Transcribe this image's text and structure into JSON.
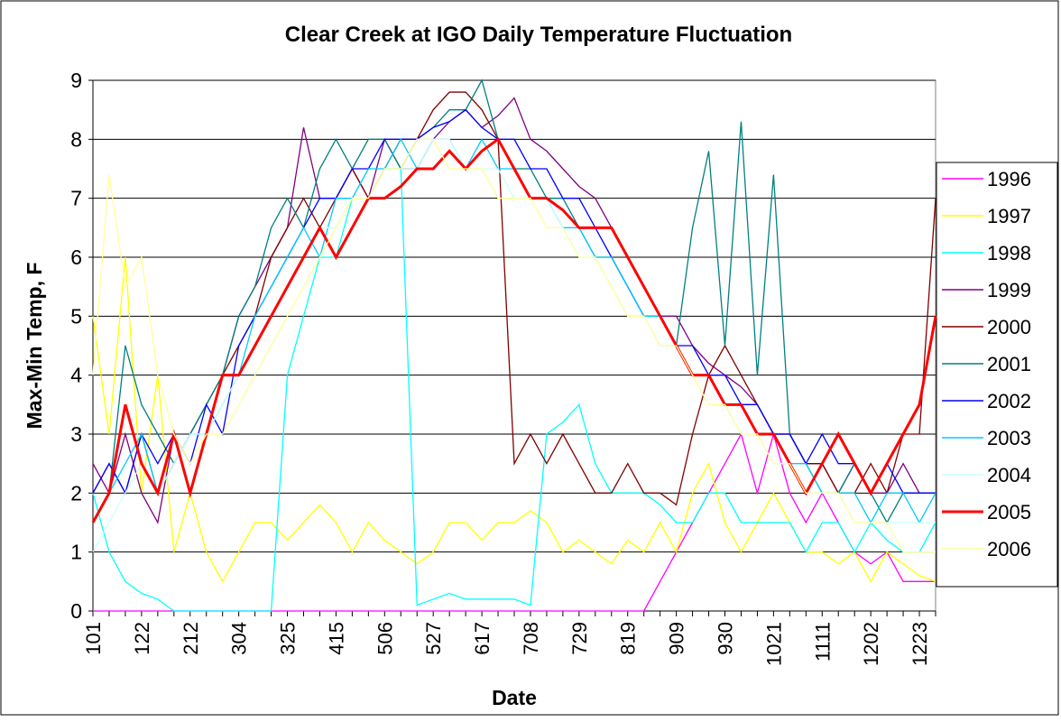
{
  "chart_data": {
    "type": "line",
    "title": "Clear Creek at IGO Daily Temperature Fluctuation",
    "xlabel": "Date",
    "ylabel": "Max-Min Temp, F",
    "categories": [
      "101",
      null,
      null,
      "122",
      null,
      null,
      "212",
      null,
      null,
      "304",
      null,
      null,
      "325",
      null,
      null,
      "415",
      null,
      null,
      "506",
      null,
      null,
      "527",
      null,
      null,
      "617",
      null,
      null,
      "708",
      null,
      null,
      "729",
      null,
      null,
      "819",
      null,
      null,
      "909",
      null,
      null,
      "930",
      null,
      null,
      "1021",
      null,
      null,
      "1111",
      null,
      null,
      "1202",
      null,
      null,
      "1223",
      null
    ],
    "ylim": [
      0,
      9
    ],
    "yticks": [
      0,
      1,
      2,
      3,
      4,
      5,
      6,
      7,
      8,
      9
    ],
    "grid": true,
    "legend": "right",
    "series": [
      {
        "name": "1996",
        "color": "#FF00FF",
        "values": [
          0,
          0,
          0,
          0,
          0,
          0,
          0,
          0,
          0,
          0,
          0,
          0,
          0,
          0,
          0,
          0,
          0,
          0,
          0,
          0,
          0,
          0,
          0,
          0,
          0,
          0,
          0,
          0,
          0,
          0,
          0,
          0,
          0,
          0,
          0,
          0.5,
          1,
          1.5,
          2,
          2.5,
          3,
          2,
          3,
          2,
          1.5,
          2,
          1.5,
          1,
          0.8,
          1,
          0.5,
          0.5,
          0.5
        ]
      },
      {
        "name": "1997",
        "color": "#FFFF00",
        "values": [
          5,
          3,
          6,
          2,
          4,
          1,
          2,
          1,
          0.5,
          1,
          1.5,
          1.5,
          1.2,
          1.5,
          1.8,
          1.5,
          1,
          1.5,
          1.2,
          1,
          0.8,
          1,
          1.5,
          1.5,
          1.2,
          1.5,
          1.5,
          1.7,
          1.5,
          1,
          1.2,
          1,
          0.8,
          1.2,
          1,
          1.5,
          1,
          2,
          2.5,
          1.5,
          1,
          1.5,
          2,
          1.5,
          1,
          1,
          0.8,
          1,
          0.5,
          1,
          0.8,
          0.6,
          0.5
        ]
      },
      {
        "name": "1998",
        "color": "#00FFFF",
        "values": [
          2,
          1,
          0.5,
          0.3,
          0.2,
          0,
          0,
          0,
          0,
          0,
          0,
          0,
          4,
          5,
          6,
          6,
          7,
          7,
          7.5,
          7.5,
          0.1,
          0.2,
          0.3,
          0.2,
          0.2,
          0.2,
          0.2,
          0.1,
          3,
          3.2,
          3.5,
          2.5,
          2,
          2,
          2,
          1.8,
          1.5,
          1.5,
          2,
          2,
          1.5,
          1.5,
          1.5,
          1.5,
          1,
          1.5,
          1.5,
          1,
          1.5,
          1.2,
          1,
          1,
          1.5
        ]
      },
      {
        "name": "1999",
        "color": "#800080",
        "values": [
          2.5,
          2,
          3,
          2,
          1.5,
          3,
          2,
          3,
          4,
          5,
          5.5,
          6,
          6.5,
          8.2,
          7,
          7,
          7.5,
          7,
          8,
          7.5,
          7.5,
          8,
          8.3,
          8.5,
          8.2,
          8.4,
          8.7,
          8,
          7.8,
          7.5,
          7.2,
          7,
          6.5,
          6,
          5.5,
          5,
          5,
          4.5,
          4.2,
          4,
          3.8,
          3.5,
          3,
          3,
          2.5,
          2.5,
          2,
          2.5,
          2,
          2,
          2.5,
          2,
          2
        ]
      },
      {
        "name": "2000",
        "color": "#800000",
        "values": [
          2,
          2.5,
          2,
          3,
          2,
          2.5,
          3,
          3.5,
          4,
          4.5,
          5,
          6,
          6.5,
          7,
          6.5,
          7,
          7.5,
          7,
          7.5,
          8,
          8,
          8.5,
          8.8,
          8.8,
          8.5,
          8,
          2.5,
          3,
          2.5,
          3,
          2.5,
          2,
          2,
          2.5,
          2,
          2,
          1.8,
          3,
          4,
          4.5,
          4,
          3.5,
          3,
          3,
          2.5,
          2.5,
          2,
          2,
          2.5,
          2,
          3,
          3,
          7
        ]
      },
      {
        "name": "2001",
        "color": "#008080",
        "values": [
          1.5,
          2,
          4.5,
          3.5,
          3,
          2.5,
          3,
          3.5,
          4,
          5,
          5.5,
          6.5,
          7,
          6.5,
          7.5,
          8,
          7.5,
          8,
          8,
          7.5,
          8,
          8.2,
          8.5,
          8.5,
          9,
          8,
          7.5,
          7.5,
          7,
          7,
          6.5,
          6,
          6,
          5.5,
          5,
          5,
          4.5,
          6.5,
          7.8,
          4.5,
          8.3,
          4,
          7.4,
          3,
          2.5,
          2,
          2,
          2.5,
          2,
          1.5,
          2,
          2,
          2
        ]
      },
      {
        "name": "2002",
        "color": "#0000FF",
        "values": [
          2,
          2.5,
          2,
          3,
          2.5,
          3,
          2.5,
          3.5,
          3,
          4.5,
          5,
          5.5,
          6,
          6.5,
          7,
          7,
          7.5,
          7.5,
          8,
          8,
          8,
          8.2,
          8.3,
          8.5,
          8.2,
          8,
          8,
          7.5,
          7.5,
          7,
          7,
          6.5,
          6,
          5.5,
          5,
          5,
          4.5,
          4.5,
          4,
          4,
          3.5,
          3.5,
          3,
          3,
          2.5,
          3,
          2.5,
          2.5,
          2,
          2.5,
          2,
          2,
          2
        ]
      },
      {
        "name": "2003",
        "color": "#00CCFF",
        "values": [
          1.5,
          2,
          2.5,
          3,
          2,
          2.5,
          3,
          3,
          3.5,
          4,
          5,
          5.5,
          6,
          6.5,
          6,
          7,
          7,
          7.5,
          7.5,
          8,
          7.5,
          8,
          8,
          7.5,
          8,
          7.5,
          7.5,
          7,
          7,
          6.5,
          6.5,
          6,
          6,
          5.5,
          5,
          5,
          4.5,
          4,
          4,
          3.5,
          3.5,
          3,
          3,
          2.5,
          2.5,
          2,
          2,
          2,
          1.5,
          2,
          2,
          1.5,
          2
        ]
      },
      {
        "name": "2004",
        "color": "#CCFFFF",
        "values": [
          1,
          1.5,
          2,
          2.5,
          2,
          2.5,
          3,
          3,
          3.5,
          4,
          4.5,
          5,
          5.5,
          6,
          6.5,
          6.5,
          7,
          7,
          7.5,
          7.5,
          7.5,
          8,
          8,
          7.5,
          7.5,
          7.5,
          7,
          7,
          7,
          6.5,
          6,
          6,
          5.5,
          5,
          5,
          4.5,
          4.5,
          4,
          4,
          3.5,
          3,
          3,
          2.5,
          2.5,
          2,
          2,
          2,
          1.5,
          1.5,
          1.5,
          1.5,
          1.5,
          1.5
        ]
      },
      {
        "name": "2005",
        "color": "#FF0000",
        "values": [
          1.5,
          2,
          3.5,
          2.5,
          2,
          3,
          2,
          3,
          4,
          4,
          4.5,
          5,
          5.5,
          6,
          6.5,
          6,
          6.5,
          7,
          7,
          7.2,
          7.5,
          7.5,
          7.8,
          7.5,
          7.8,
          8,
          7.5,
          7,
          7,
          6.8,
          6.5,
          6.5,
          6.5,
          6,
          5.5,
          5,
          4.5,
          4,
          4,
          3.5,
          3.5,
          3,
          3,
          2.5,
          2,
          2.5,
          3,
          2.5,
          2,
          2.5,
          3,
          3.5,
          5
        ]
      },
      {
        "name": "2006",
        "color": "#FFFF99",
        "values": [
          4,
          7.4,
          5.5,
          6,
          4,
          3,
          2.5,
          3,
          3,
          3.5,
          4,
          4.5,
          5,
          5.5,
          6,
          6.5,
          7,
          7,
          7.5,
          7.5,
          8,
          8,
          7.5,
          7.5,
          7.5,
          7,
          7,
          7,
          6.5,
          6.5,
          6,
          6,
          5.5,
          5,
          5,
          4.5,
          4.5,
          4,
          3.5,
          3.5,
          3,
          3,
          2.5,
          2.5,
          2,
          2,
          2,
          1.5,
          1.5,
          1.5,
          1,
          1,
          1
        ]
      }
    ]
  }
}
